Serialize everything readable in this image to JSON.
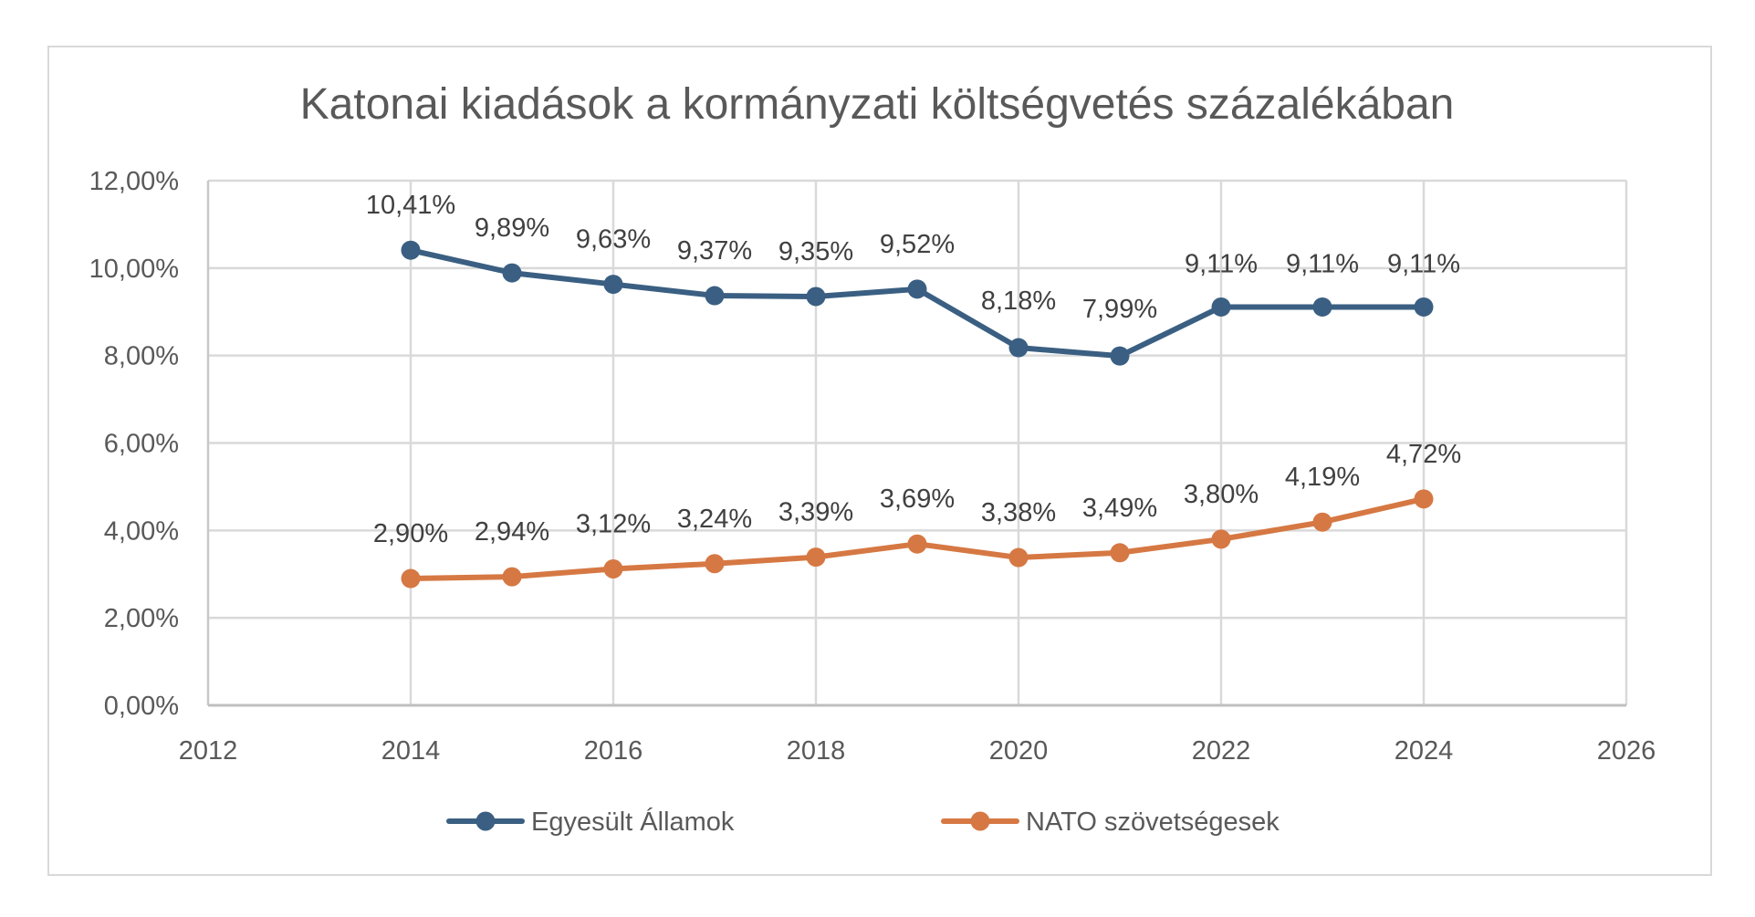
{
  "chart_data": {
    "type": "line",
    "title": "Katonai kiadások a kormányzati költségvetés százalékában",
    "xlabel": "",
    "ylabel": "",
    "xlim": [
      2012,
      2026
    ],
    "ylim": [
      0,
      12
    ],
    "x_ticks": [
      "2012",
      "2014",
      "2016",
      "2018",
      "2020",
      "2022",
      "2024",
      "2026"
    ],
    "x_tick_values": [
      2012,
      2014,
      2016,
      2018,
      2020,
      2022,
      2024,
      2026
    ],
    "y_ticks": [
      "0,00%",
      "2,00%",
      "4,00%",
      "6,00%",
      "8,00%",
      "10,00%",
      "12,00%"
    ],
    "y_tick_values": [
      0,
      2,
      4,
      6,
      8,
      10,
      12
    ],
    "grid": true,
    "legend_position": "bottom",
    "x": [
      2014,
      2015,
      2016,
      2017,
      2018,
      2019,
      2020,
      2021,
      2022,
      2023,
      2024
    ],
    "series": [
      {
        "name": "Egyesült Államok",
        "color": "#3a5f82",
        "values": [
          10.41,
          9.89,
          9.63,
          9.37,
          9.35,
          9.52,
          8.18,
          7.99,
          9.11,
          9.11,
          9.11
        ],
        "labels": [
          "10,41%",
          "9,89%",
          "9,63%",
          "9,37%",
          "9,35%",
          "9,52%",
          "8,18%",
          "7,99%",
          "9,11%",
          "9,11%",
          "9,11%"
        ]
      },
      {
        "name": "NATO szövetségesek",
        "color": "#d67843",
        "values": [
          2.9,
          2.94,
          3.12,
          3.24,
          3.39,
          3.69,
          3.38,
          3.49,
          3.8,
          4.19,
          4.72
        ],
        "labels": [
          "2,90%",
          "2,94%",
          "3,12%",
          "3,24%",
          "3,39%",
          "3,69%",
          "3,38%",
          "3,49%",
          "3,80%",
          "4,19%",
          "4,72%"
        ]
      }
    ]
  }
}
